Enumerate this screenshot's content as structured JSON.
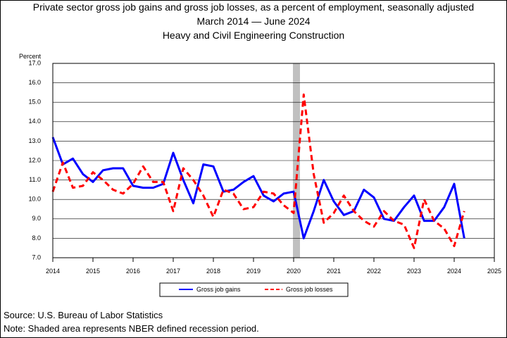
{
  "title_lines": [
    "Private sector gross job gains and gross job losses, as a percent of employment, seasonally adjusted",
    "March 2014  — June 2024",
    "Heavy and Civil Engineering Construction"
  ],
  "footnotes": {
    "source": "Source: U.S. Bureau of Labor Statistics",
    "note": "Note: Shaded area represents NBER defined recession period."
  },
  "colors": {
    "gains": "#0000ff",
    "losses": "#ff0000",
    "recession": "#c0c0c0",
    "grid": "#000000"
  },
  "chart_data": {
    "type": "line",
    "ylabel": "Percent",
    "ylim": [
      7.0,
      17.0
    ],
    "xlim": [
      2014,
      2025
    ],
    "yticks": [
      "7.0",
      "8.0",
      "9.0",
      "10.0",
      "11.0",
      "12.0",
      "13.0",
      "14.0",
      "15.0",
      "16.0",
      "17.0"
    ],
    "xticks": [
      "2014",
      "2015",
      "2016",
      "2017",
      "2018",
      "2019",
      "2020",
      "2021",
      "2022",
      "2023",
      "2024",
      "2025"
    ],
    "grid": "horizontal",
    "legend_position": "bottom",
    "recession_shading": {
      "start": 2020.0,
      "end": 2020.17
    },
    "x": [
      2014.0,
      2014.25,
      2014.5,
      2014.75,
      2015.0,
      2015.25,
      2015.5,
      2015.75,
      2016.0,
      2016.25,
      2016.5,
      2016.75,
      2017.0,
      2017.25,
      2017.5,
      2017.75,
      2018.0,
      2018.25,
      2018.5,
      2018.75,
      2019.0,
      2019.25,
      2019.5,
      2019.75,
      2020.0,
      2020.25,
      2020.5,
      2020.75,
      2021.0,
      2021.25,
      2021.5,
      2021.75,
      2022.0,
      2022.25,
      2022.5,
      2022.75,
      2023.0,
      2023.25,
      2023.5,
      2023.75,
      2024.0,
      2024.25
    ],
    "series": [
      {
        "name": "Gross job gains",
        "style": "solid",
        "values": [
          13.2,
          11.8,
          12.1,
          11.3,
          10.9,
          11.5,
          11.6,
          11.6,
          10.7,
          10.6,
          10.6,
          10.8,
          12.4,
          11.0,
          9.8,
          11.8,
          11.7,
          10.4,
          10.5,
          10.9,
          11.2,
          10.2,
          9.9,
          10.3,
          10.4,
          8.0,
          9.4,
          11.0,
          9.9,
          9.2,
          9.4,
          10.5,
          10.1,
          9.0,
          8.9,
          9.6,
          10.2,
          8.9,
          8.9,
          9.6,
          10.8,
          8.0
        ]
      },
      {
        "name": "Gross job losses",
        "style": "dashed",
        "values": [
          10.4,
          11.9,
          10.6,
          10.7,
          11.4,
          11.0,
          10.5,
          10.3,
          10.8,
          11.7,
          10.9,
          10.9,
          9.4,
          11.6,
          11.0,
          10.2,
          9.1,
          10.5,
          10.3,
          9.5,
          9.6,
          10.4,
          10.3,
          9.7,
          9.3,
          15.4,
          11.3,
          8.8,
          9.3,
          10.2,
          9.4,
          8.9,
          8.6,
          9.4,
          8.9,
          8.7,
          7.5,
          10.0,
          8.9,
          8.5,
          7.6,
          9.4
        ]
      }
    ]
  }
}
